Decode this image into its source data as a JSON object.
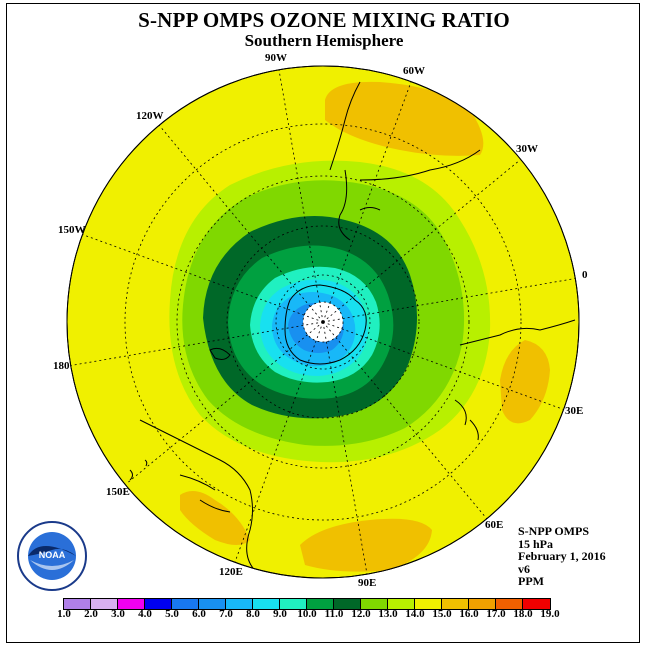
{
  "title": "S-NPP OMPS OZONE MIXING RATIO",
  "subtitle": "Southern Hemisphere",
  "longitude_labels": [
    "90W",
    "60W",
    "30W",
    "0",
    "30E",
    "60E",
    "90E",
    "120E",
    "150E",
    "180",
    "150W",
    "120W"
  ],
  "info": {
    "instrument": "S-NPP OMPS",
    "pressure": "15 hPa",
    "date": "February 1, 2016",
    "version": "v6",
    "units": "PPM"
  },
  "logo": {
    "text": "NOAA",
    "icon": "noaa-logo"
  },
  "colorbar": {
    "labels": [
      "1.0",
      "2.0",
      "3.0",
      "4.0",
      "5.0",
      "6.0",
      "7.0",
      "8.0",
      "9.0",
      "10.0",
      "11.0",
      "12.0",
      "13.0",
      "14.0",
      "15.0",
      "16.0",
      "17.0",
      "18.0",
      "19.0"
    ],
    "colors": [
      "#b080e8",
      "#d8b0f0",
      "#f000f0",
      "#0000f0",
      "#1878f0",
      "#1890f0",
      "#18b8f8",
      "#18e0f0",
      "#20f0c0",
      "#00a040",
      "#006828",
      "#80d800",
      "#b8f000",
      "#f0f000",
      "#f0c000",
      "#f0a000",
      "#f06000",
      "#f00000",
      "#805030"
    ]
  },
  "map": {
    "projection": "south-polar-stereographic",
    "fill_levels_ppm": [
      "13.0-14.0",
      "14.0-15.0",
      "12.0-13.0",
      "11.0-12.0",
      "10.0-11.0",
      "9.0-10.0",
      "8.0-9.0",
      "7.0-8.0",
      "6.0-7.0"
    ]
  }
}
